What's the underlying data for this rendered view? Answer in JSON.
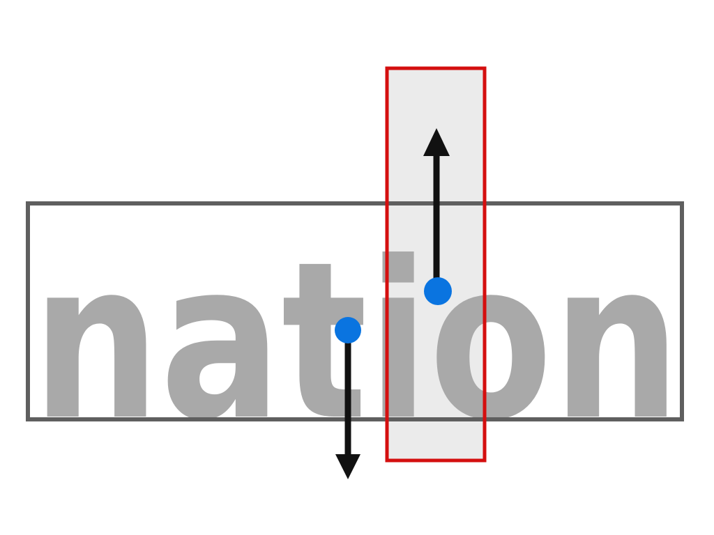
{
  "diagram": {
    "word": "nation",
    "colors": {
      "background": "#ffffff",
      "word_text": "#a9a9a9",
      "word_box_border": "#5f5f5f",
      "highlight_fill": "#ebebeb",
      "highlight_border": "#d40f0f",
      "handle": "#0a74e0",
      "arrow": "#111111"
    },
    "handles": [
      {
        "name": "lower-handle",
        "direction": "down"
      },
      {
        "name": "upper-handle",
        "direction": "up"
      }
    ]
  }
}
